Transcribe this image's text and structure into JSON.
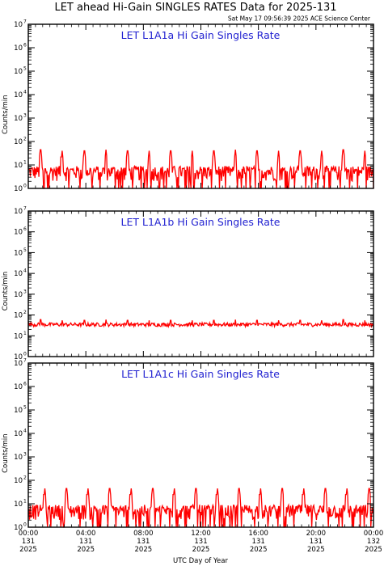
{
  "title": "LET ahead Hi-Gain SINGLES RATES Data for 2025-131",
  "timestamp": "Sat May 17 09:56:39 2025 ACE Science Center",
  "chart_data": [
    {
      "type": "line",
      "title": "LET L1A1a Hi Gain Singles Rate",
      "ylabel": "Counts/min",
      "xlabel": "UTC Day of Year",
      "yscale": "log",
      "ylim": [
        1,
        10000000
      ],
      "xlim_hours": [
        0,
        24
      ],
      "series": [
        {
          "color": "#ff0000",
          "baseline_range": [
            2,
            9
          ],
          "spike_hours": [
            0.85,
            2.35,
            3.9,
            5.4,
            6.9,
            8.4,
            9.9,
            11.4,
            12.9,
            14.4,
            15.9,
            17.4,
            18.9,
            20.4,
            21.9,
            23.4
          ],
          "spike_values": [
            45,
            40,
            40,
            45,
            40,
            40,
            40,
            40,
            40,
            45,
            40,
            40,
            40,
            40,
            45,
            40
          ]
        }
      ]
    },
    {
      "type": "line",
      "title": "LET L1A1b Hi Gain Singles Rate",
      "ylabel": "Counts/min",
      "xlabel": "UTC Day of Year",
      "yscale": "log",
      "ylim": [
        1,
        10000000
      ],
      "xlim_hours": [
        0,
        24
      ],
      "series": [
        {
          "color": "#ff0000",
          "baseline_range": [
            28,
            42
          ],
          "spike_hours": [
            0.85,
            2.35,
            3.9,
            5.4,
            6.9,
            8.4,
            9.9,
            11.4,
            12.9,
            14.4,
            15.9,
            17.4,
            18.9,
            20.4,
            21.9,
            23.4
          ],
          "spike_values": [
            60,
            55,
            55,
            60,
            55,
            55,
            55,
            55,
            55,
            60,
            55,
            55,
            55,
            55,
            60,
            55
          ]
        }
      ]
    },
    {
      "type": "line",
      "title": "LET L1A1c Hi Gain Singles Rate",
      "ylabel": "Counts/min",
      "xlabel": "UTC Day of Year",
      "yscale": "log",
      "ylim": [
        1,
        10000000
      ],
      "xlim_hours": [
        0,
        24
      ],
      "series": [
        {
          "color": "#ff0000",
          "baseline_range": [
            2,
            9
          ],
          "spike_hours": [
            1.15,
            2.65,
            4.15,
            5.65,
            7.15,
            8.65,
            10.15,
            11.65,
            13.15,
            14.65,
            16.15,
            17.65,
            19.15,
            20.65,
            22.15,
            23.7
          ],
          "spike_values": [
            45,
            45,
            45,
            45,
            45,
            45,
            45,
            45,
            45,
            45,
            45,
            45,
            45,
            45,
            45,
            45
          ]
        }
      ]
    }
  ],
  "y_ticks": [
    {
      "base": "10",
      "exp": "0"
    },
    {
      "base": "10",
      "exp": "1"
    },
    {
      "base": "10",
      "exp": "2"
    },
    {
      "base": "10",
      "exp": "3"
    },
    {
      "base": "10",
      "exp": "4"
    },
    {
      "base": "10",
      "exp": "5"
    },
    {
      "base": "10",
      "exp": "6"
    },
    {
      "base": "10",
      "exp": "7"
    }
  ],
  "x_ticks": [
    {
      "time": "00:00",
      "doy": "131",
      "year": "2025"
    },
    {
      "time": "04:00",
      "doy": "131",
      "year": "2025"
    },
    {
      "time": "08:00",
      "doy": "131",
      "year": "2025"
    },
    {
      "time": "12:00",
      "doy": "131",
      "year": "2025"
    },
    {
      "time": "16:00",
      "doy": "131",
      "year": "2025"
    },
    {
      "time": "20:00",
      "doy": "131",
      "year": "2025"
    },
    {
      "time": "00:00",
      "doy": "132",
      "year": "2025"
    }
  ],
  "xlabel": "UTC Day of Year"
}
